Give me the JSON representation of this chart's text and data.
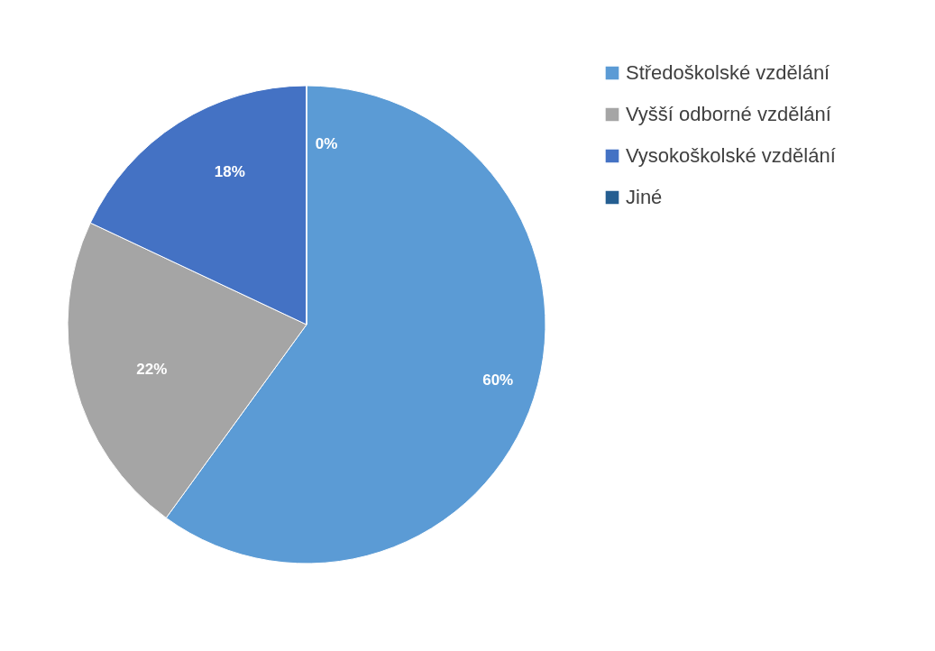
{
  "chart_data": {
    "type": "pie",
    "categories": [
      "Středoškolské vzdělání",
      "Vyšší odborné vzdělání",
      "Vysokoškolské vzdělání",
      "Jiné"
    ],
    "values": [
      60,
      22,
      18,
      0
    ],
    "colors": [
      "#5b9bd5",
      "#a5a5a5",
      "#4472c4",
      "#255e91"
    ],
    "value_labels": [
      "60%",
      "22%",
      "18%",
      "0%"
    ],
    "legend": "right"
  }
}
